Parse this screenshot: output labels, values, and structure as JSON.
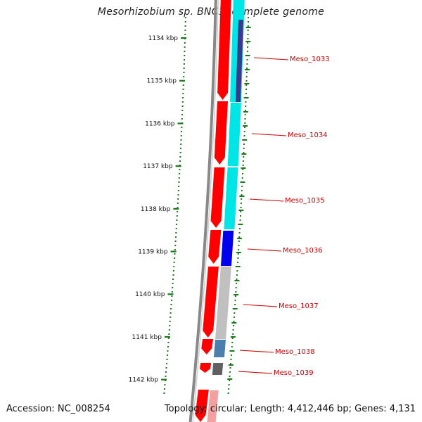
{
  "title": "Mesorhizobium sp. BNC1, complete genome",
  "footer": {
    "accession": "Accession: NC_008254",
    "summary": "Topology: circular; Length: 4,412,446 bp; Genes: 4,131"
  },
  "ticks": [
    "1134 kbp",
    "1135 kbp",
    "1136 kbp",
    "1137 kbp",
    "1138 kbp",
    "1139 kbp",
    "1140 kbp",
    "1141 kbp",
    "1142 kbp"
  ],
  "genes": [
    {
      "label": "Meso_1033",
      "color": "#3a3a8c"
    },
    {
      "label": "Meso_1034",
      "color": "#00e5e5"
    },
    {
      "label": "Meso_1035",
      "color": "#00e5e5"
    },
    {
      "label": "Meso_1036",
      "color": "#0000ee"
    },
    {
      "label": "Meso_1037",
      "color": "#c0c0c0"
    },
    {
      "label": "Meso_1038",
      "color": "#4a7fb0"
    },
    {
      "label": "Meso_1039",
      "color": "#606060"
    }
  ],
  "colors": {
    "cds_forward": "#ff0000",
    "backbone": "#888888",
    "tick": "#1a7a1a",
    "label_line": "#cc0000"
  }
}
